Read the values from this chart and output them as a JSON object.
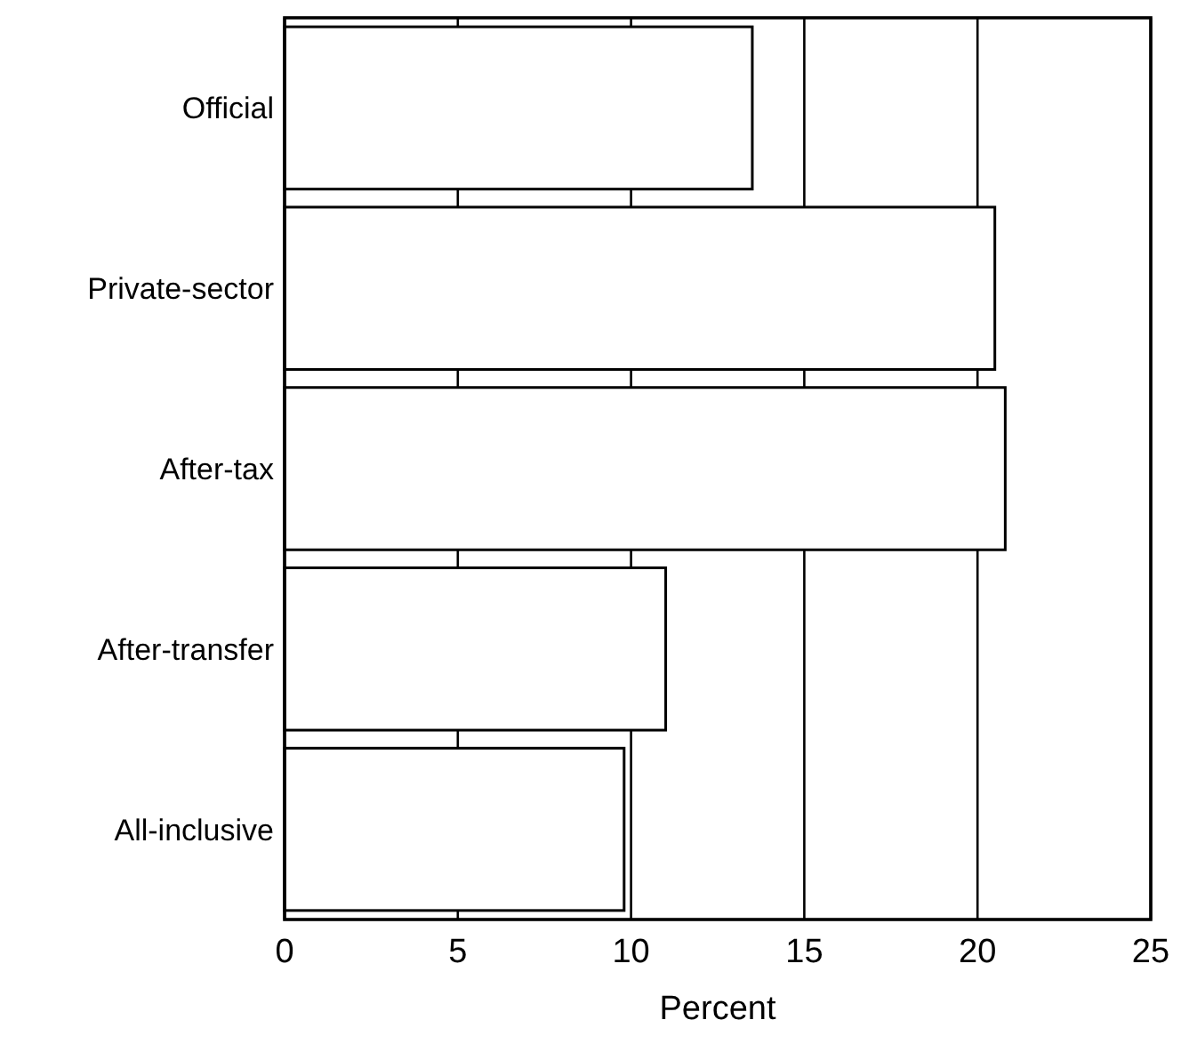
{
  "chart_data": {
    "type": "bar",
    "orientation": "horizontal",
    "xlabel": "Percent",
    "categories": [
      "Official",
      "Private-sector",
      "After-tax",
      "After-transfer",
      "All-inclusive"
    ],
    "values": [
      13.5,
      20.5,
      20.8,
      11.0,
      9.8
    ],
    "color": "#ffffff",
    "xlim": [
      0,
      25
    ],
    "xticks": [
      0,
      5,
      10,
      15,
      20,
      25
    ],
    "grid": "x"
  }
}
